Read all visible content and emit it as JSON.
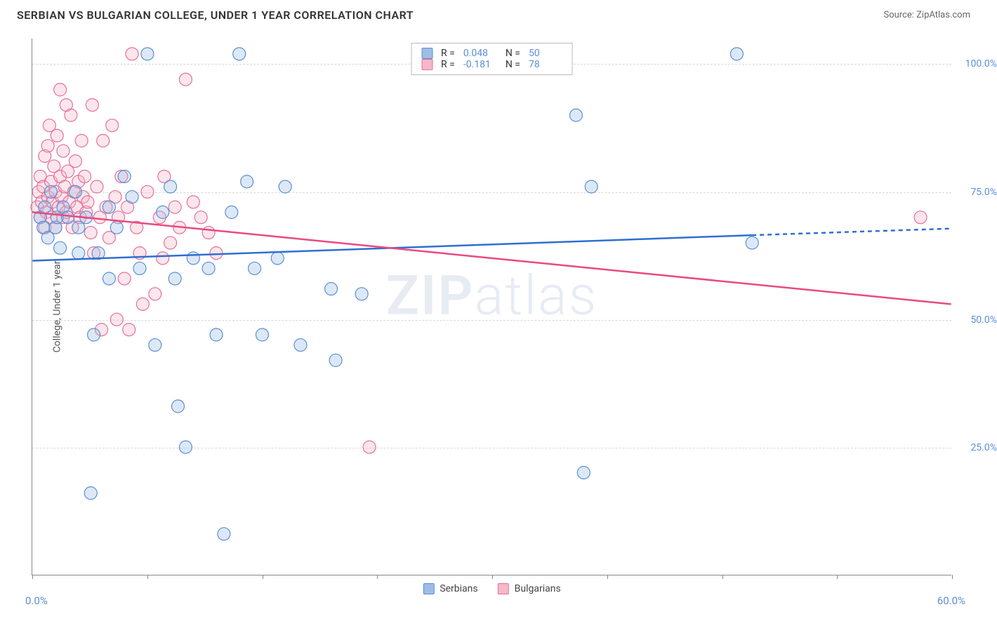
{
  "title": "SERBIAN VS BULGARIAN COLLEGE, UNDER 1 YEAR CORRELATION CHART",
  "source": "Source: ZipAtlas.com",
  "watermark_a": "ZIP",
  "watermark_b": "atlas",
  "chart": {
    "type": "scatter",
    "background_color": "#ffffff",
    "grid_color": "#d8d8d8",
    "axis_line_color": "#888888",
    "title_fontsize": 16,
    "label_fontsize": 14,
    "tick_label_color": "#5b8fd6",
    "y_axis_title": "College, Under 1 year",
    "xlim": [
      0,
      60
    ],
    "ylim": [
      0,
      105
    ],
    "x_ticks": [
      0,
      7.5,
      15,
      22.5,
      30,
      37.5,
      45,
      52.5,
      60
    ],
    "x_tick_labels_shown": {
      "start": "0.0%",
      "end": "60.0%"
    },
    "y_ticks": [
      25,
      50,
      75,
      100
    ],
    "y_tick_labels": [
      "25.0%",
      "50.0%",
      "75.0%",
      "100.0%"
    ],
    "marker_radius": 9,
    "marker_fill_opacity": 0.35,
    "line_width": 2.5
  },
  "legend": {
    "series1_label": "Serbians",
    "series2_label": "Bulgarians"
  },
  "stats": {
    "r_label": "R =",
    "n_label": "N =",
    "series1": {
      "r": "0.048",
      "n": "50"
    },
    "series2": {
      "r": "-0.181",
      "n": "78"
    }
  },
  "series": {
    "serbians": {
      "color_fill": "#9dbde6",
      "color_stroke": "#5b8fd6",
      "trend_color": "#2f6fd0",
      "trend": {
        "x1": 0,
        "y1": 61.5,
        "x2": 47,
        "y2": 66.5,
        "extend_x2": 60,
        "extend_y2": 67.8
      },
      "points": [
        [
          0.5,
          70
        ],
        [
          0.7,
          68
        ],
        [
          0.8,
          72
        ],
        [
          1.0,
          66
        ],
        [
          1.2,
          75
        ],
        [
          1.5,
          68
        ],
        [
          1.6,
          70
        ],
        [
          1.8,
          64
        ],
        [
          2.0,
          72
        ],
        [
          2.3,
          70
        ],
        [
          3.0,
          63
        ],
        [
          3.0,
          68
        ],
        [
          3.5,
          70
        ],
        [
          3.8,
          16
        ],
        [
          4.0,
          47
        ],
        [
          4.3,
          63
        ],
        [
          5.0,
          58
        ],
        [
          5.0,
          72
        ],
        [
          5.5,
          68
        ],
        [
          6.0,
          78
        ],
        [
          6.5,
          74
        ],
        [
          7.0,
          60
        ],
        [
          7.5,
          102
        ],
        [
          8.0,
          45
        ],
        [
          8.5,
          71
        ],
        [
          9.0,
          76
        ],
        [
          9.3,
          58
        ],
        [
          9.5,
          33
        ],
        [
          10.0,
          25
        ],
        [
          10.5,
          62
        ],
        [
          11.5,
          60
        ],
        [
          12.0,
          47
        ],
        [
          12.5,
          8
        ],
        [
          13.0,
          71
        ],
        [
          13.5,
          102
        ],
        [
          14.0,
          77
        ],
        [
          14.5,
          60
        ],
        [
          15.0,
          47
        ],
        [
          16.0,
          62
        ],
        [
          16.5,
          76
        ],
        [
          17.5,
          45
        ],
        [
          19.5,
          56
        ],
        [
          19.8,
          42
        ],
        [
          21.5,
          55
        ],
        [
          35.5,
          90
        ],
        [
          36.0,
          20
        ],
        [
          36.5,
          76
        ],
        [
          46.0,
          102
        ],
        [
          47.0,
          65
        ],
        [
          2.8,
          75
        ]
      ]
    },
    "bulgarians": {
      "color_fill": "#f4b8c8",
      "color_stroke": "#e76f9a",
      "trend_color": "#e94a7f",
      "trend": {
        "x1": 0,
        "y1": 71.0,
        "x2": 60,
        "y2": 53.0
      },
      "points": [
        [
          0.3,
          72
        ],
        [
          0.4,
          75
        ],
        [
          0.5,
          70
        ],
        [
          0.5,
          78
        ],
        [
          0.6,
          73
        ],
        [
          0.7,
          76
        ],
        [
          0.8,
          82
        ],
        [
          0.8,
          68
        ],
        [
          0.9,
          71
        ],
        [
          1.0,
          74
        ],
        [
          1.0,
          84
        ],
        [
          1.1,
          88
        ],
        [
          1.2,
          70
        ],
        [
          1.2,
          77
        ],
        [
          1.3,
          73
        ],
        [
          1.4,
          80
        ],
        [
          1.5,
          75
        ],
        [
          1.5,
          68
        ],
        [
          1.6,
          86
        ],
        [
          1.7,
          72
        ],
        [
          1.8,
          78
        ],
        [
          1.9,
          74
        ],
        [
          2.0,
          70
        ],
        [
          2.0,
          83
        ],
        [
          2.1,
          76
        ],
        [
          2.2,
          71
        ],
        [
          2.3,
          79
        ],
        [
          2.4,
          73
        ],
        [
          2.5,
          90
        ],
        [
          2.6,
          68
        ],
        [
          2.7,
          75
        ],
        [
          2.8,
          81
        ],
        [
          2.9,
          72
        ],
        [
          3.0,
          77
        ],
        [
          3.1,
          70
        ],
        [
          3.2,
          85
        ],
        [
          3.3,
          74
        ],
        [
          3.4,
          78
        ],
        [
          3.5,
          71
        ],
        [
          3.6,
          73
        ],
        [
          3.8,
          67
        ],
        [
          4.0,
          63
        ],
        [
          4.2,
          76
        ],
        [
          4.4,
          70
        ],
        [
          4.6,
          85
        ],
        [
          4.8,
          72
        ],
        [
          5.0,
          66
        ],
        [
          5.2,
          88
        ],
        [
          5.4,
          74
        ],
        [
          5.6,
          70
        ],
        [
          5.8,
          78
        ],
        [
          6.0,
          58
        ],
        [
          6.2,
          72
        ],
        [
          6.5,
          102
        ],
        [
          6.8,
          68
        ],
        [
          7.0,
          63
        ],
        [
          7.5,
          75
        ],
        [
          8.0,
          55
        ],
        [
          8.3,
          70
        ],
        [
          8.6,
          78
        ],
        [
          9.0,
          65
        ],
        [
          9.3,
          72
        ],
        [
          9.6,
          68
        ],
        [
          10.0,
          97
        ],
        [
          10.5,
          73
        ],
        [
          11.0,
          70
        ],
        [
          11.5,
          67
        ],
        [
          12.0,
          63
        ],
        [
          4.5,
          48
        ],
        [
          5.5,
          50
        ],
        [
          6.3,
          48
        ],
        [
          7.2,
          53
        ],
        [
          8.5,
          62
        ],
        [
          3.9,
          92
        ],
        [
          2.2,
          92
        ],
        [
          1.8,
          95
        ],
        [
          22.0,
          25
        ],
        [
          58.0,
          70
        ]
      ]
    }
  }
}
